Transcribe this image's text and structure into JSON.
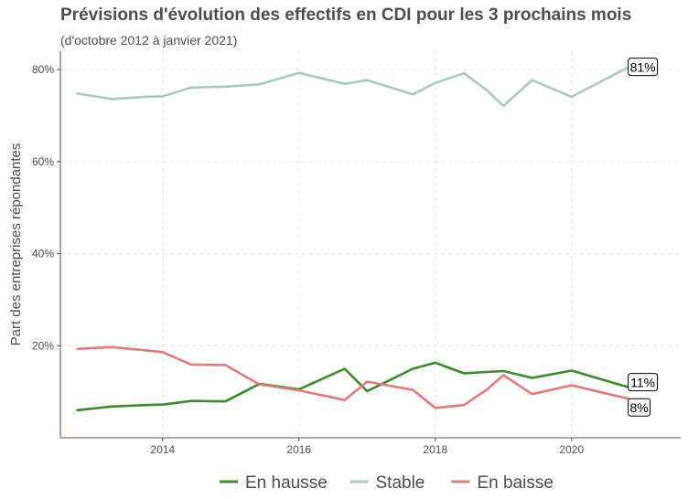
{
  "chart_data": {
    "type": "line",
    "title": "Prévisions d'évolution des effectifs en CDI pour les 3 prochains mois",
    "subtitle": "(d'octobre 2012 à janvier 2021)",
    "ylabel": "Part des entreprises répondantes",
    "xlabel": "",
    "xlim": [
      2012.5,
      2021.6
    ],
    "ylim": [
      0.0,
      0.84
    ],
    "x_ticks": [
      2014,
      2016,
      2018,
      2020
    ],
    "x_tick_labels": [
      "2014",
      "2016",
      "2018",
      "2020"
    ],
    "y_ticks": [
      0.2,
      0.4,
      0.6,
      0.8
    ],
    "y_tick_labels": [
      "20%",
      "40%",
      "60%",
      "80%"
    ],
    "grid": true,
    "legend_position": "bottom",
    "series": [
      {
        "name": "En hausse",
        "color": "#3d8a2d",
        "x": [
          2012.75,
          2013.25,
          2013.75,
          2014.0,
          2014.42,
          2014.92,
          2015.42,
          2016.0,
          2016.67,
          2017.0,
          2017.67,
          2018.0,
          2018.42,
          2018.75,
          2019.0,
          2019.42,
          2020.0,
          2020.83
        ],
        "y": [
          0.06,
          0.068,
          0.071,
          0.072,
          0.08,
          0.079,
          0.117,
          0.105,
          0.15,
          0.101,
          0.15,
          0.163,
          0.14,
          0.143,
          0.145,
          0.13,
          0.146,
          0.11
        ],
        "end_label": "11%"
      },
      {
        "name": "Stable",
        "color": "#a9c9bf",
        "x": [
          2012.75,
          2013.25,
          2013.75,
          2014.0,
          2014.42,
          2014.92,
          2015.42,
          2016.0,
          2016.67,
          2017.0,
          2017.67,
          2018.0,
          2018.42,
          2018.75,
          2019.0,
          2019.42,
          2020.0,
          2020.83
        ],
        "y": [
          0.748,
          0.736,
          0.741,
          0.742,
          0.761,
          0.763,
          0.768,
          0.793,
          0.769,
          0.777,
          0.746,
          0.771,
          0.792,
          0.756,
          0.721,
          0.777,
          0.741,
          0.805
        ],
        "end_label": "81%"
      },
      {
        "name": "En baisse",
        "color": "#e07a7e",
        "x": [
          2012.75,
          2013.25,
          2013.75,
          2014.0,
          2014.42,
          2014.92,
          2015.42,
          2016.0,
          2016.67,
          2017.0,
          2017.67,
          2018.0,
          2018.42,
          2018.75,
          2019.0,
          2019.42,
          2020.0,
          2020.83
        ],
        "y": [
          0.193,
          0.197,
          0.19,
          0.186,
          0.159,
          0.158,
          0.116,
          0.103,
          0.082,
          0.122,
          0.104,
          0.065,
          0.071,
          0.104,
          0.136,
          0.095,
          0.114,
          0.085
        ],
        "end_label": "8%"
      }
    ]
  }
}
